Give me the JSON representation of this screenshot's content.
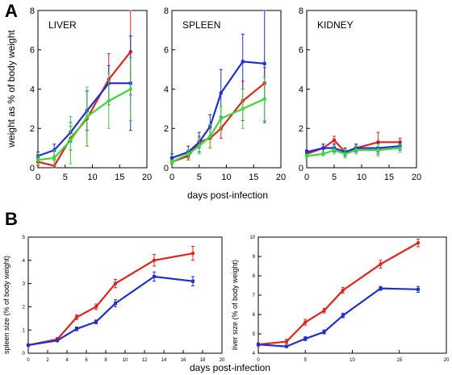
{
  "panel_labels": {
    "a": "A",
    "b": "B"
  },
  "colors": {
    "red": "#e2231a",
    "blue": "#1f2fd0",
    "green": "#3bd93b",
    "axis": "#000000"
  },
  "chart_data": [
    {
      "id": "A1",
      "type": "line",
      "title": "LIVER",
      "ylabel": "weight as % of body weight",
      "xlabel": "",
      "xlim": [
        0,
        20
      ],
      "ylim": [
        0,
        8
      ],
      "xticks": [
        0,
        5,
        10,
        15,
        20
      ],
      "yticks": [
        0,
        2,
        4,
        6,
        8
      ],
      "series": [
        {
          "color": "red",
          "x": [
            0,
            3,
            6,
            9,
            13,
            17
          ],
          "y": [
            0.3,
            0.1,
            1.5,
            2.5,
            4.5,
            5.9
          ],
          "err": [
            0.2,
            0.3,
            0.6,
            1.4,
            1.3,
            2.2
          ],
          "marker": "dot"
        },
        {
          "color": "blue",
          "x": [
            0,
            3,
            6,
            9,
            13,
            17
          ],
          "y": [
            0.6,
            0.9,
            1.8,
            2.9,
            4.3,
            4.3
          ],
          "err": [
            0.2,
            0.3,
            0.5,
            1.0,
            0.9,
            2.4
          ],
          "marker": "square"
        },
        {
          "color": "green",
          "x": [
            0,
            3,
            6,
            9,
            13,
            17
          ],
          "y": [
            0.4,
            0.5,
            1.4,
            2.6,
            3.4,
            4.0
          ],
          "err": [
            0.2,
            0.4,
            1.2,
            1.5,
            1.4,
            1.6
          ],
          "marker": "dot"
        }
      ]
    },
    {
      "id": "A2",
      "type": "line",
      "title": "SPLEEN",
      "xlim": [
        0,
        20
      ],
      "ylim": [
        0,
        8
      ],
      "xticks": [
        0,
        5,
        10,
        15,
        20
      ],
      "yticks": [
        0,
        2,
        4,
        6,
        8
      ],
      "series": [
        {
          "color": "red",
          "x": [
            0,
            3,
            5,
            7,
            9,
            13,
            17
          ],
          "y": [
            0.3,
            0.6,
            1.3,
            1.5,
            2.0,
            3.4,
            4.3
          ],
          "err": [
            0.1,
            0.2,
            0.3,
            0.5,
            0.5,
            1.0,
            0.8
          ],
          "marker": "square"
        },
        {
          "color": "blue",
          "x": [
            0,
            3,
            5,
            7,
            9,
            13,
            17
          ],
          "y": [
            0.5,
            0.8,
            1.3,
            2.1,
            3.8,
            5.4,
            5.3
          ],
          "err": [
            0.2,
            0.3,
            0.5,
            0.6,
            1.2,
            1.4,
            3.0
          ],
          "marker": "square"
        },
        {
          "color": "green",
          "x": [
            0,
            3,
            5,
            7,
            9,
            13,
            17
          ],
          "y": [
            0.3,
            0.7,
            1.1,
            1.6,
            2.5,
            3.0,
            3.5
          ],
          "err": [
            0.1,
            0.2,
            0.4,
            0.6,
            0.6,
            1.0,
            1.1
          ],
          "marker": "dot"
        }
      ]
    },
    {
      "id": "A3",
      "type": "line",
      "title": "KIDNEY",
      "xlim": [
        0,
        20
      ],
      "ylim": [
        0,
        8
      ],
      "xticks": [
        0,
        5,
        10,
        15,
        20
      ],
      "yticks": [
        0,
        2,
        4,
        6,
        8
      ],
      "series": [
        {
          "color": "red",
          "x": [
            0,
            3,
            5,
            7,
            9,
            13,
            17
          ],
          "y": [
            0.7,
            1.0,
            1.4,
            0.8,
            1.0,
            1.3,
            1.3
          ],
          "err": [
            0.1,
            0.2,
            0.2,
            0.2,
            0.2,
            0.5,
            0.2
          ],
          "marker": "square"
        },
        {
          "color": "blue",
          "x": [
            0,
            3,
            5,
            7,
            9,
            13,
            17
          ],
          "y": [
            0.8,
            1.0,
            1.0,
            0.8,
            1.0,
            1.0,
            1.1
          ],
          "err": [
            0.1,
            0.2,
            0.2,
            0.2,
            0.2,
            0.3,
            0.2
          ],
          "marker": "square"
        },
        {
          "color": "green",
          "x": [
            0,
            3,
            5,
            7,
            9,
            13,
            17
          ],
          "y": [
            0.6,
            0.7,
            0.9,
            0.7,
            0.9,
            0.9,
            1.0
          ],
          "err": [
            0.1,
            0.1,
            0.2,
            0.2,
            0.2,
            0.3,
            0.2
          ],
          "marker": "dot"
        }
      ]
    },
    {
      "id": "B1",
      "type": "line",
      "ylabel": "spleen size (% of body weight)",
      "xlabel": "",
      "xlim": [
        0,
        20
      ],
      "ylim": [
        0,
        5
      ],
      "xticks": [
        0,
        2,
        4,
        6,
        8,
        10,
        12,
        14,
        16,
        18,
        20
      ],
      "yticks": [
        0,
        1,
        2,
        3,
        4,
        5
      ],
      "series": [
        {
          "color": "red",
          "x": [
            0,
            3,
            5,
            7,
            9,
            13,
            17
          ],
          "y": [
            0.35,
            0.6,
            1.55,
            2.0,
            3.0,
            4.0,
            4.3
          ],
          "err": [
            0.05,
            0.08,
            0.1,
            0.12,
            0.18,
            0.25,
            0.3
          ],
          "marker": "dot"
        },
        {
          "color": "blue",
          "x": [
            0,
            3,
            5,
            7,
            9,
            13,
            17
          ],
          "y": [
            0.35,
            0.55,
            1.05,
            1.35,
            2.15,
            3.3,
            3.1
          ],
          "err": [
            0.05,
            0.06,
            0.08,
            0.08,
            0.15,
            0.2,
            0.2
          ],
          "marker": "square"
        }
      ]
    },
    {
      "id": "B2",
      "type": "line",
      "ylabel": "liver size (% of body weight)",
      "xlabel": "",
      "xlim": [
        0,
        20
      ],
      "ylim": [
        4,
        10
      ],
      "xticks": [
        0,
        5,
        10,
        15,
        20
      ],
      "yticks": [
        4,
        5,
        6,
        7,
        8,
        9,
        10
      ],
      "series": [
        {
          "color": "red",
          "x": [
            0,
            3,
            5,
            7,
            9,
            13,
            17
          ],
          "y": [
            4.45,
            4.6,
            5.6,
            6.2,
            7.25,
            8.6,
            9.7
          ],
          "err": [
            0.08,
            0.12,
            0.15,
            0.12,
            0.15,
            0.2,
            0.2
          ],
          "marker": "dot"
        },
        {
          "color": "blue",
          "x": [
            0,
            3,
            5,
            7,
            9,
            13,
            17
          ],
          "y": [
            4.45,
            4.35,
            4.75,
            5.1,
            5.95,
            7.35,
            7.3
          ],
          "err": [
            0.06,
            0.06,
            0.1,
            0.1,
            0.12,
            0.1,
            0.15
          ],
          "marker": "square"
        }
      ]
    }
  ],
  "shared_labels": {
    "a_xlabel": "days post-infection",
    "b_xlabel": "days post-infection"
  }
}
